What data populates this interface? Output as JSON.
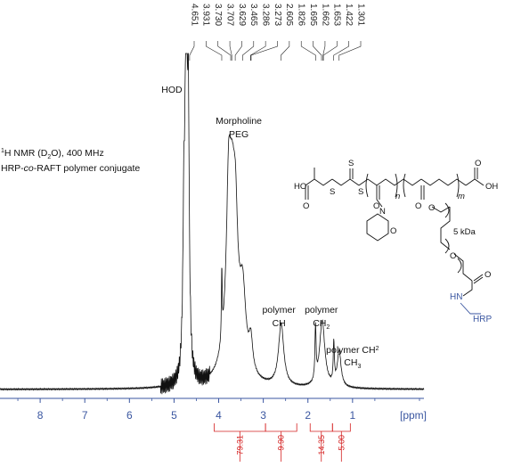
{
  "chart_data": {
    "type": "line",
    "title": "",
    "xlabel": "[ppm]",
    "ylabel": "",
    "xlim": [
      8.9,
      -0.6
    ],
    "x_reversed": true,
    "grid": false,
    "x_ticks": [
      8,
      7,
      6,
      5,
      4,
      3,
      2,
      1
    ],
    "peak_list": [
      "4.651",
      "3.931",
      "3.730",
      "3.707",
      "3.629",
      "3.465",
      "3.286",
      "3.273",
      "2.605",
      "1.826",
      "1.695",
      "1.662",
      "1.653",
      "1.422",
      "1.301"
    ],
    "peak_labels": [
      {
        "lines": [
          "HOD"
        ],
        "x": 4.85
      },
      {
        "lines": [
          "Morpholine",
          "PEG"
        ],
        "x": 3.55
      },
      {
        "lines": [
          "polymer",
          "CH"
        ],
        "x": 2.65
      },
      {
        "lines": [
          "polymer",
          "CH2"
        ],
        "x": 1.7
      },
      {
        "lines": [
          "polymer CH2",
          "CH3"
        ],
        "x": 1.0
      }
    ],
    "annotation": {
      "line1": "1H NMR (D2O), 400 MHz",
      "line2": "HRP-co-RAFT polymer conjugate"
    },
    "integrals": [
      {
        "from": 4.1,
        "to": 2.95,
        "value": "79.31"
      },
      {
        "from": 2.95,
        "to": 2.25,
        "value": "9.90"
      },
      {
        "from": 1.95,
        "to": 1.45,
        "value": "14.35"
      },
      {
        "from": 1.45,
        "to": 1.05,
        "value": "5.00"
      }
    ],
    "structure_labels": {
      "acid_left": "HO",
      "thio1": "S",
      "thio2": "S",
      "thio3": "S",
      "carbonyl_o1": "O",
      "morph_n": "N",
      "morph_o": "O",
      "n_sub": "n",
      "m_sub": "m",
      "acid_right": "OH",
      "ester_o": "O",
      "ester_o2": "O",
      "peg_size": "5 kDa",
      "peg_o": "O",
      "amide_o": "O",
      "amide_nh": "HN",
      "hrp": "HRP"
    }
  }
}
